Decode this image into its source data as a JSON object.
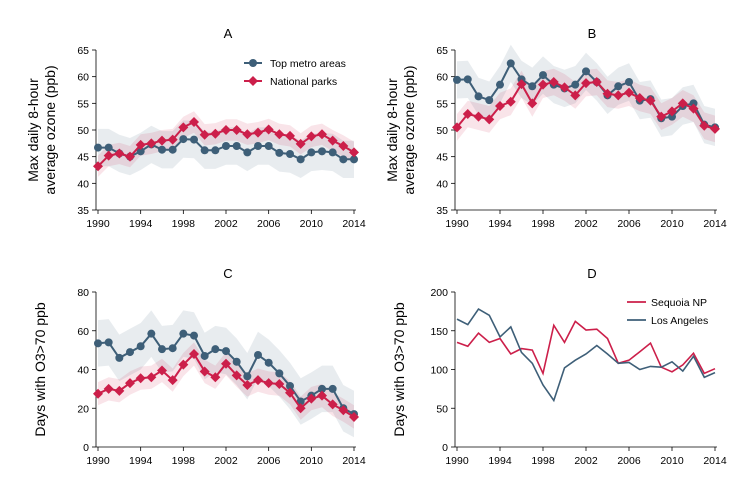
{
  "figure": {
    "colors": {
      "metro": "#3e5f78",
      "parks": "#cc1f4a",
      "sequoia": "#cc1f4a",
      "la": "#3e5f78"
    }
  },
  "chart_data": [
    {
      "id": "A",
      "type": "line",
      "title": "A",
      "ylabel_lines": [
        "Max daily 8-hour",
        "average ozone (ppb)"
      ],
      "xlabel": "",
      "xlim": [
        1990,
        2014
      ],
      "ylim": [
        35,
        65
      ],
      "xticks": [
        1990,
        1994,
        1998,
        2002,
        2006,
        2010,
        2014
      ],
      "yticks": [
        35,
        40,
        45,
        50,
        55,
        60,
        65
      ],
      "legend": {
        "position": "top-right",
        "entries": [
          "Top metro areas",
          "National parks"
        ]
      },
      "x": [
        1990,
        1991,
        1992,
        1993,
        1994,
        1995,
        1996,
        1997,
        1998,
        1999,
        2000,
        2001,
        2002,
        2003,
        2004,
        2005,
        2006,
        2007,
        2008,
        2009,
        2010,
        2011,
        2012,
        2013,
        2014
      ],
      "series": [
        {
          "name": "Top metro areas",
          "color": "#3e5f78",
          "marker": "circle",
          "band": 3.5,
          "values": [
            46.7,
            46.7,
            45.6,
            45.0,
            46.0,
            47.3,
            46.3,
            46.3,
            48.3,
            48.2,
            46.2,
            46.2,
            47.0,
            47.0,
            45.8,
            47.0,
            47.0,
            45.7,
            45.5,
            44.5,
            45.8,
            46.0,
            45.8,
            44.5,
            44.5
          ]
        },
        {
          "name": "National parks",
          "color": "#cc1f4a",
          "marker": "diamond",
          "band": 2.0,
          "values": [
            43.2,
            45.2,
            45.6,
            45.0,
            47.2,
            47.5,
            48.0,
            48.2,
            50.5,
            51.5,
            49.1,
            49.3,
            50.0,
            50.0,
            49.2,
            49.5,
            50.1,
            49.2,
            48.9,
            47.4,
            48.8,
            49.2,
            48.0,
            47.0,
            45.8
          ]
        }
      ]
    },
    {
      "id": "B",
      "type": "line",
      "title": "B",
      "ylabel_lines": [
        "Max daily 8-hour",
        "average ozone (ppb)"
      ],
      "xlabel": "",
      "xlim": [
        1990,
        2014
      ],
      "ylim": [
        35,
        65
      ],
      "xticks": [
        1990,
        1994,
        1998,
        2002,
        2006,
        2010,
        2014
      ],
      "yticks": [
        35,
        40,
        45,
        50,
        55,
        60,
        65
      ],
      "x": [
        1990,
        1991,
        1992,
        1993,
        1994,
        1995,
        1996,
        1997,
        1998,
        1999,
        2000,
        2001,
        2002,
        2003,
        2004,
        2005,
        2006,
        2007,
        2008,
        2009,
        2010,
        2011,
        2012,
        2013,
        2014
      ],
      "series": [
        {
          "name": "Top metro areas",
          "color": "#3e5f78",
          "marker": "circle",
          "band": 3.5,
          "values": [
            59.4,
            59.5,
            56.3,
            55.6,
            58.5,
            62.5,
            59.5,
            58.2,
            60.3,
            58.5,
            57.8,
            58.5,
            61.0,
            59.0,
            56.5,
            58.2,
            59.0,
            55.5,
            55.8,
            52.2,
            52.5,
            54.5,
            55.0,
            51.0,
            50.5
          ]
        },
        {
          "name": "National parks",
          "color": "#cc1f4a",
          "marker": "diamond",
          "band": 2.5,
          "values": [
            50.5,
            53.0,
            52.5,
            52.0,
            54.5,
            55.3,
            58.6,
            55.0,
            58.5,
            59.0,
            58.0,
            56.5,
            58.8,
            59.0,
            56.8,
            56.5,
            57.0,
            56.0,
            55.5,
            52.5,
            53.5,
            55.0,
            54.0,
            50.8,
            50.2
          ]
        }
      ]
    },
    {
      "id": "C",
      "type": "line",
      "title": "C",
      "ylabel_lines": [
        "Days with O3>70 ppb"
      ],
      "xlabel": "",
      "xlim": [
        1990,
        2014
      ],
      "ylim": [
        0,
        80
      ],
      "xticks": [
        1990,
        1994,
        1998,
        2002,
        2006,
        2010,
        2014
      ],
      "yticks": [
        0,
        20,
        40,
        60,
        80
      ],
      "x": [
        1990,
        1991,
        1992,
        1993,
        1994,
        1995,
        1996,
        1997,
        1998,
        1999,
        2000,
        2001,
        2002,
        2003,
        2004,
        2005,
        2006,
        2007,
        2008,
        2009,
        2010,
        2011,
        2012,
        2013,
        2014
      ],
      "series": [
        {
          "name": "Top metro areas",
          "color": "#3e5f78",
          "marker": "circle",
          "band": 12,
          "values": [
            53.5,
            54.0,
            46.0,
            49.0,
            52.0,
            58.5,
            50.5,
            51.0,
            58.5,
            57.5,
            47.0,
            50.5,
            49.5,
            44.0,
            36.5,
            47.5,
            43.5,
            38.0,
            31.5,
            23.5,
            26.5,
            30.0,
            30.0,
            20.0,
            17.0
          ]
        },
        {
          "name": "National parks",
          "color": "#cc1f4a",
          "marker": "diamond",
          "band": 6,
          "values": [
            27.5,
            30.0,
            29.0,
            33.0,
            35.5,
            36.0,
            39.5,
            34.5,
            42.5,
            48.0,
            39.0,
            36.0,
            43.0,
            37.0,
            32.0,
            34.5,
            33.0,
            32.5,
            28.0,
            20.0,
            25.0,
            26.5,
            22.0,
            19.0,
            15.5
          ]
        }
      ]
    },
    {
      "id": "D",
      "type": "line",
      "title": "D",
      "ylabel_lines": [
        "Days with O3>70 ppb"
      ],
      "xlabel": "",
      "xlim": [
        1990,
        2014
      ],
      "ylim": [
        0,
        200
      ],
      "xticks": [
        1990,
        1994,
        1998,
        2002,
        2006,
        2010,
        2014
      ],
      "yticks": [
        0,
        50,
        100,
        150,
        200
      ],
      "legend": {
        "position": "top-right",
        "entries": [
          "Sequoia NP",
          "Los Angeles"
        ]
      },
      "x": [
        1990,
        1991,
        1992,
        1993,
        1994,
        1995,
        1996,
        1997,
        1998,
        1999,
        2000,
        2001,
        2002,
        2003,
        2004,
        2005,
        2006,
        2007,
        2008,
        2009,
        2010,
        2011,
        2012,
        2013,
        2014
      ],
      "series": [
        {
          "name": "Sequoia NP",
          "color": "#cc1f4a",
          "values": [
            135,
            130,
            147,
            135,
            140,
            120,
            127,
            125,
            95,
            157,
            135,
            162,
            151,
            152,
            140,
            108,
            112,
            123,
            134,
            103,
            97,
            106,
            121,
            95,
            101
          ]
        },
        {
          "name": "Los Angeles",
          "color": "#3e5f78",
          "values": [
            165,
            158,
            178,
            170,
            142,
            155,
            122,
            108,
            80,
            60,
            102,
            112,
            120,
            131,
            120,
            108,
            109,
            100,
            104,
            103,
            110,
            98,
            117,
            90,
            96
          ]
        }
      ]
    }
  ]
}
